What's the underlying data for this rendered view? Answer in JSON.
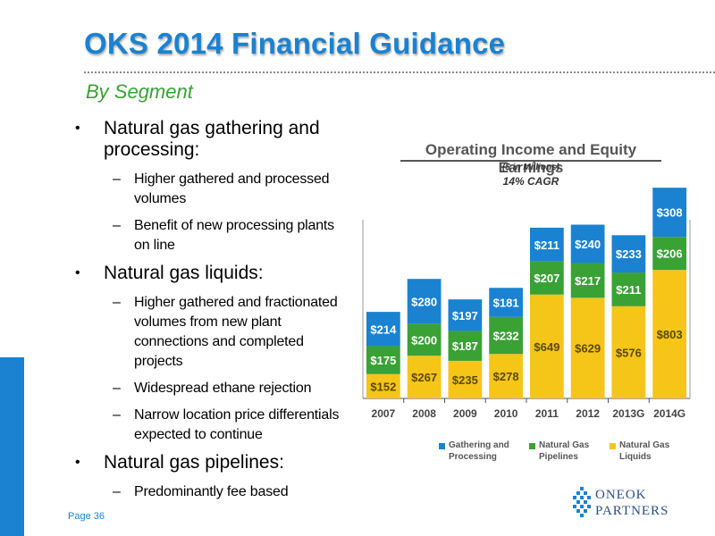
{
  "title": "OKS 2014 Financial Guidance",
  "subtitle": "By Segment",
  "page_label": "Page 36",
  "colors": {
    "title_blue": "#1a82d0",
    "subtitle_green": "#3aa135",
    "gathering": "#1a82d0",
    "pipelines": "#3aa135",
    "liquids": "#f5c518"
  },
  "bullets": [
    {
      "text": "Natural gas gathering and processing:",
      "subs": [
        "Higher gathered and processed volumes",
        "Benefit of new processing plants on line"
      ]
    },
    {
      "text": "Natural gas liquids:",
      "subs": [
        "Higher gathered and fractionated volumes from new plant connections and completed projects",
        "Widespread ethane rejection",
        "Narrow location price differentials expected to continue"
      ]
    },
    {
      "text": "Natural gas pipelines:",
      "subs": [
        "Predominantly fee based"
      ]
    }
  ],
  "logo": {
    "line1": "ONEOK",
    "line2": "PARTNERS",
    "icon": "oneok-logo-icon"
  },
  "chart_data": {
    "type": "bar",
    "stacked": true,
    "title": "Operating Income and Equity Earnings",
    "subtitle": "($ in Millions)",
    "note": "14% CAGR",
    "categories": [
      "2007",
      "2008",
      "2009",
      "2010",
      "2011",
      "2012",
      "2013G",
      "2014G"
    ],
    "series": [
      {
        "name": "Natural Gas Liquids",
        "key": "liquids",
        "values": [
          152,
          267,
          235,
          278,
          649,
          629,
          576,
          803
        ],
        "labels": [
          "$152",
          "$267",
          "$235",
          "$278",
          "$649",
          "$629",
          "$576",
          "$803"
        ]
      },
      {
        "name": "Natural Gas Pipelines",
        "key": "pipelines",
        "values": [
          175,
          200,
          187,
          232,
          207,
          217,
          211,
          206
        ],
        "labels": [
          "$175",
          "$200",
          "$187",
          "$232",
          "$207",
          "$217",
          "$211",
          "$206"
        ]
      },
      {
        "name": "Gathering and Processing",
        "key": "gathering",
        "values": [
          214,
          280,
          197,
          181,
          211,
          240,
          233,
          308
        ],
        "labels": [
          "$214",
          "$280",
          "$197",
          "$181",
          "$211",
          "$240",
          "$233",
          "$308"
        ]
      }
    ],
    "legend": [
      "Gathering and Processing",
      "Natural Gas Pipelines",
      "Natural Gas Liquids"
    ],
    "legend_position": "bottom",
    "ylim": [
      0,
      1340
    ],
    "grid": false
  }
}
